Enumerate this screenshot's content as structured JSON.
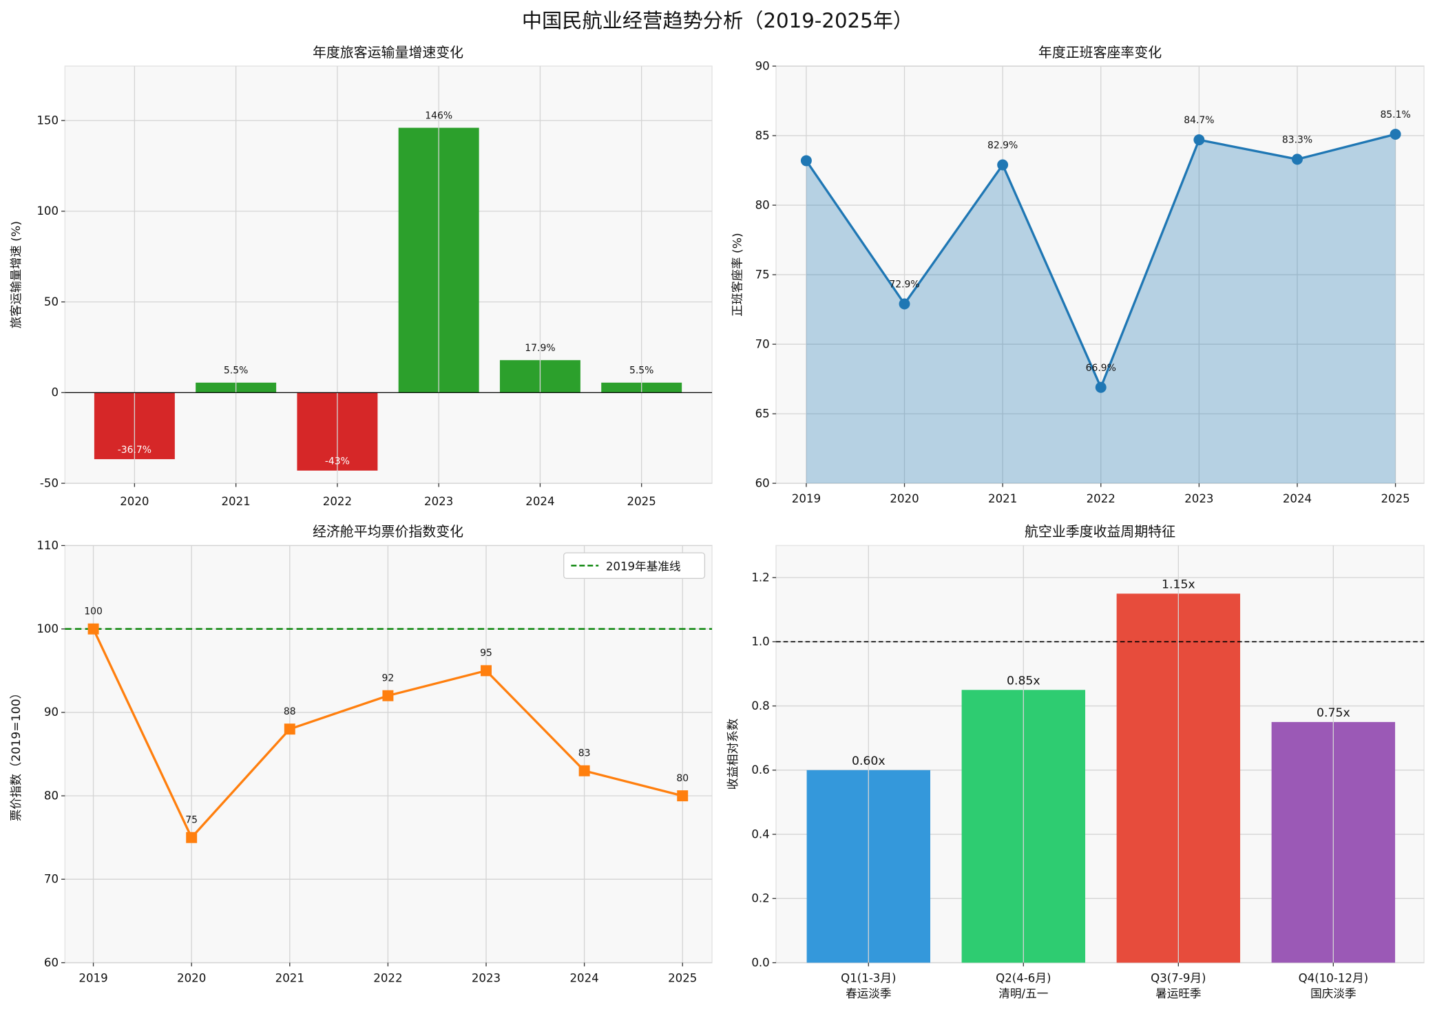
{
  "title": "中国民航业经营趋势分析（2019-2025年）",
  "chart_data": [
    {
      "type": "bar",
      "title": "年度旅客运输量增速变化",
      "xlabel": "",
      "ylabel": "旅客运输量增速 (%)",
      "categories": [
        "2020",
        "2021",
        "2022",
        "2023",
        "2024",
        "2025"
      ],
      "values": [
        -36.7,
        5.5,
        -43,
        146,
        17.9,
        5.5
      ],
      "data_labels": [
        "-36.7%",
        "5.5%",
        "-43%",
        "146%",
        "17.9%",
        "5.5%"
      ],
      "colors": {
        "negative": "#d62728",
        "positive": "#2ca02c"
      },
      "ylim": [
        -50,
        180
      ],
      "yticks": [
        -50,
        0,
        50,
        100,
        150
      ],
      "grid": true
    },
    {
      "type": "area",
      "title": "年度正班客座率变化",
      "xlabel": "",
      "ylabel": "正班客座率 (%)",
      "x": [
        "2019",
        "2020",
        "2021",
        "2022",
        "2023",
        "2024",
        "2025"
      ],
      "values": [
        83.2,
        72.9,
        82.9,
        66.9,
        84.7,
        83.3,
        85.1
      ],
      "data_labels": [
        "",
        "72.9%",
        "82.9%",
        "66.9%",
        "84.7%",
        "83.3%",
        "85.1%"
      ],
      "color": "#1f77b4",
      "ylim": [
        60,
        90
      ],
      "yticks": [
        60,
        65,
        70,
        75,
        80,
        85,
        90
      ],
      "grid": true
    },
    {
      "type": "line",
      "title": "经济舱平均票价指数变化",
      "xlabel": "",
      "ylabel": "票价指数（2019=100）",
      "x": [
        "2019",
        "2020",
        "2021",
        "2022",
        "2023",
        "2024",
        "2025"
      ],
      "values": [
        100,
        75,
        88,
        92,
        95,
        83,
        80
      ],
      "data_labels": [
        "100",
        "75",
        "88",
        "92",
        "95",
        "83",
        "80"
      ],
      "color": "#ff7f0e",
      "reference_line": {
        "value": 100,
        "label": "2019年基准线",
        "color": "#008000"
      },
      "legend": "top-right",
      "ylim": [
        60,
        110
      ],
      "yticks": [
        60,
        70,
        80,
        90,
        100,
        110
      ],
      "grid": true
    },
    {
      "type": "bar",
      "title": "航空业季度收益周期特征",
      "xlabel": "",
      "ylabel": "收益相对系数",
      "categories": [
        [
          "Q1(1-3月)",
          "春运淡季"
        ],
        [
          "Q2(4-6月)",
          "清明/五一"
        ],
        [
          "Q3(7-9月)",
          "暑运旺季"
        ],
        [
          "Q4(10-12月)",
          "国庆淡季"
        ]
      ],
      "values": [
        0.6,
        0.85,
        1.15,
        0.75
      ],
      "data_labels": [
        "0.60x",
        "0.85x",
        "1.15x",
        "0.75x"
      ],
      "colors": [
        "#3498db",
        "#2ecc71",
        "#e74c3c",
        "#9b59b6"
      ],
      "reference_line": {
        "value": 1.0,
        "color": "#000000"
      },
      "ylim": [
        0,
        1.3
      ],
      "yticks": [
        "0.0",
        "0.2",
        "0.4",
        "0.6",
        "0.8",
        "1.0",
        "1.2"
      ],
      "grid": true
    }
  ]
}
